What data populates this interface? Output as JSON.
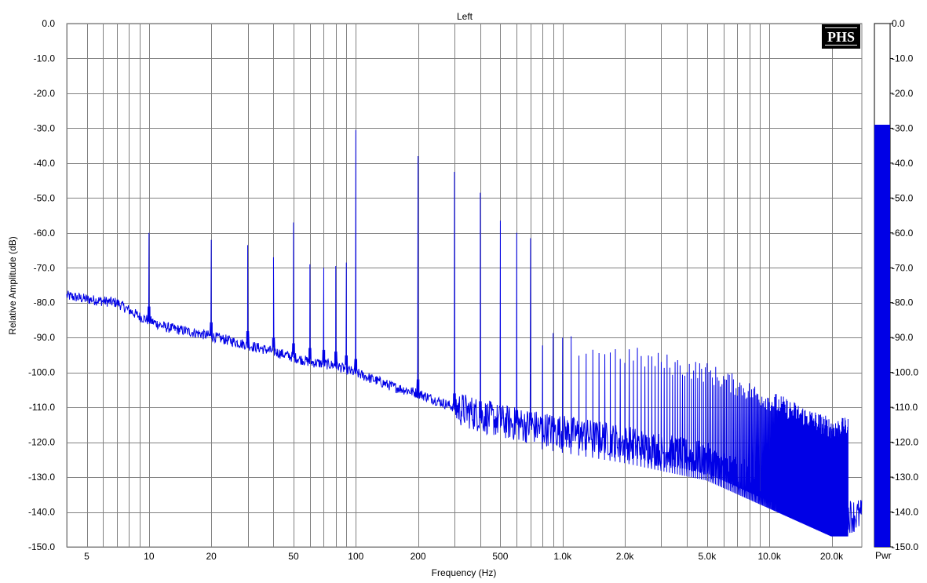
{
  "chart_data": {
    "type": "line",
    "title": "Left",
    "xlabel": "Frequency (Hz)",
    "ylabel": "Relative Amplitude (dB)",
    "x_scale": "log",
    "xlim": [
      4,
      28000
    ],
    "ylim": [
      -150,
      0
    ],
    "x_tick_labels": [
      {
        "value": 5,
        "label": "5"
      },
      {
        "value": 10,
        "label": "10"
      },
      {
        "value": 20,
        "label": "20"
      },
      {
        "value": 50,
        "label": "50"
      },
      {
        "value": 100,
        "label": "100"
      },
      {
        "value": 200,
        "label": "200"
      },
      {
        "value": 500,
        "label": "500"
      },
      {
        "value": 1000,
        "label": "1.0k"
      },
      {
        "value": 2000,
        "label": "2.0k"
      },
      {
        "value": 5000,
        "label": "5.0k"
      },
      {
        "value": 10000,
        "label": "10.0k"
      },
      {
        "value": 20000,
        "label": "20.0k"
      }
    ],
    "y_tick_labels": [
      "0.0",
      "-10.0",
      "-20.0",
      "-30.0",
      "-40.0",
      "-50.0",
      "-60.0",
      "-70.0",
      "-80.0",
      "-90.0",
      "-100.0",
      "-110.0",
      "-120.0",
      "-130.0",
      "-140.0",
      "-150.0"
    ],
    "grid": true,
    "series_color": "#0000e6",
    "peaks": [
      {
        "x": 10,
        "y": -60
      },
      {
        "x": 20,
        "y": -62
      },
      {
        "x": 30,
        "y": -63.5
      },
      {
        "x": 40,
        "y": -67
      },
      {
        "x": 50,
        "y": -57
      },
      {
        "x": 60,
        "y": -69
      },
      {
        "x": 70,
        "y": -70
      },
      {
        "x": 80,
        "y": -69.5
      },
      {
        "x": 90,
        "y": -68.5
      },
      {
        "x": 100,
        "y": -30.5
      },
      {
        "x": 200,
        "y": -38
      },
      {
        "x": 300,
        "y": -42.5
      },
      {
        "x": 400,
        "y": -48.5
      },
      {
        "x": 500,
        "y": -56.5
      },
      {
        "x": 600,
        "y": -60
      },
      {
        "x": 700,
        "y": -61.5
      }
    ],
    "noise_floor": [
      {
        "x": 4,
        "y": -78
      },
      {
        "x": 5,
        "y": -79
      },
      {
        "x": 7,
        "y": -80
      },
      {
        "x": 9,
        "y": -84
      },
      {
        "x": 12,
        "y": -87
      },
      {
        "x": 18,
        "y": -89
      },
      {
        "x": 25,
        "y": -91
      },
      {
        "x": 40,
        "y": -94
      },
      {
        "x": 60,
        "y": -97
      },
      {
        "x": 80,
        "y": -98
      },
      {
        "x": 150,
        "y": -104
      },
      {
        "x": 200,
        "y": -106
      },
      {
        "x": 300,
        "y": -110
      },
      {
        "x": 500,
        "y": -114
      },
      {
        "x": 1000,
        "y": -117
      },
      {
        "x": 2000,
        "y": -120
      },
      {
        "x": 5000,
        "y": -125
      },
      {
        "x": 10000,
        "y": -133
      },
      {
        "x": 20000,
        "y": -141
      },
      {
        "x": 28000,
        "y": -141
      }
    ],
    "color_scale": {
      "label": "Pwr",
      "ticks": [
        "0.0",
        "-10.0",
        "-20.0",
        "-30.0",
        "-40.0",
        "-50.0",
        "-60.0",
        "-70.0",
        "-80.0",
        "-90.0",
        "-100.0",
        "-110.0",
        "-120.0",
        "-130.0",
        "-140.0",
        "-150.0"
      ],
      "level_db": -29,
      "fill_color": "#0000e6",
      "range": [
        -150,
        0
      ]
    },
    "logo_text": "PHS"
  }
}
